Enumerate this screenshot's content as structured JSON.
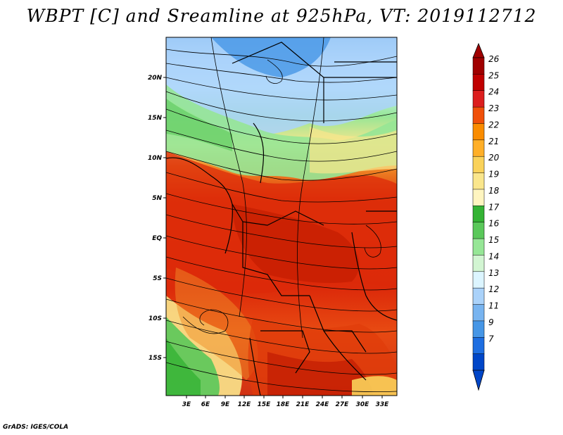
{
  "title": "WBPT [C] and Sreamline at 925hPa, VT: 2019112712",
  "credit": "GrADS: IGES/COLA",
  "variable": "WBPT",
  "units": "C",
  "level": "925hPa",
  "valid_time": "2019112712",
  "map": {
    "lon_range": [
      0,
      36
    ],
    "lat_range": [
      -19,
      24
    ],
    "lon_ticks": [
      "3E",
      "6E",
      "9E",
      "12E",
      "15E",
      "18E",
      "21E",
      "24E",
      "27E",
      "30E",
      "33E"
    ],
    "lat_ticks": [
      "20N",
      "15N",
      "10N",
      "5N",
      "EQ",
      "5S",
      "10S",
      "15S"
    ],
    "streamlines": true,
    "political_boundaries": true
  },
  "colorbar": {
    "orientation": "vertical",
    "position": "right",
    "levels": [
      "26",
      "25",
      "24",
      "23",
      "22",
      "21",
      "20",
      "19",
      "18",
      "17",
      "16",
      "15",
      "14",
      "13",
      "12",
      "11",
      "9",
      "7"
    ],
    "colors": [
      "#a00000",
      "#c00000",
      "#dc1e1e",
      "#f0500a",
      "#fa8c00",
      "#ffaf28",
      "#fad25a",
      "#fae68c",
      "#fff5c0",
      "#34b334",
      "#5ac85a",
      "#96e696",
      "#d2f5d2",
      "#dcf5ff",
      "#aad2fa",
      "#78b4f0",
      "#4696e6",
      "#1e6ee1",
      "#0046c8"
    ],
    "arrow_top_color": "#a00000",
    "arrow_bottom_color": "#0046c8"
  }
}
